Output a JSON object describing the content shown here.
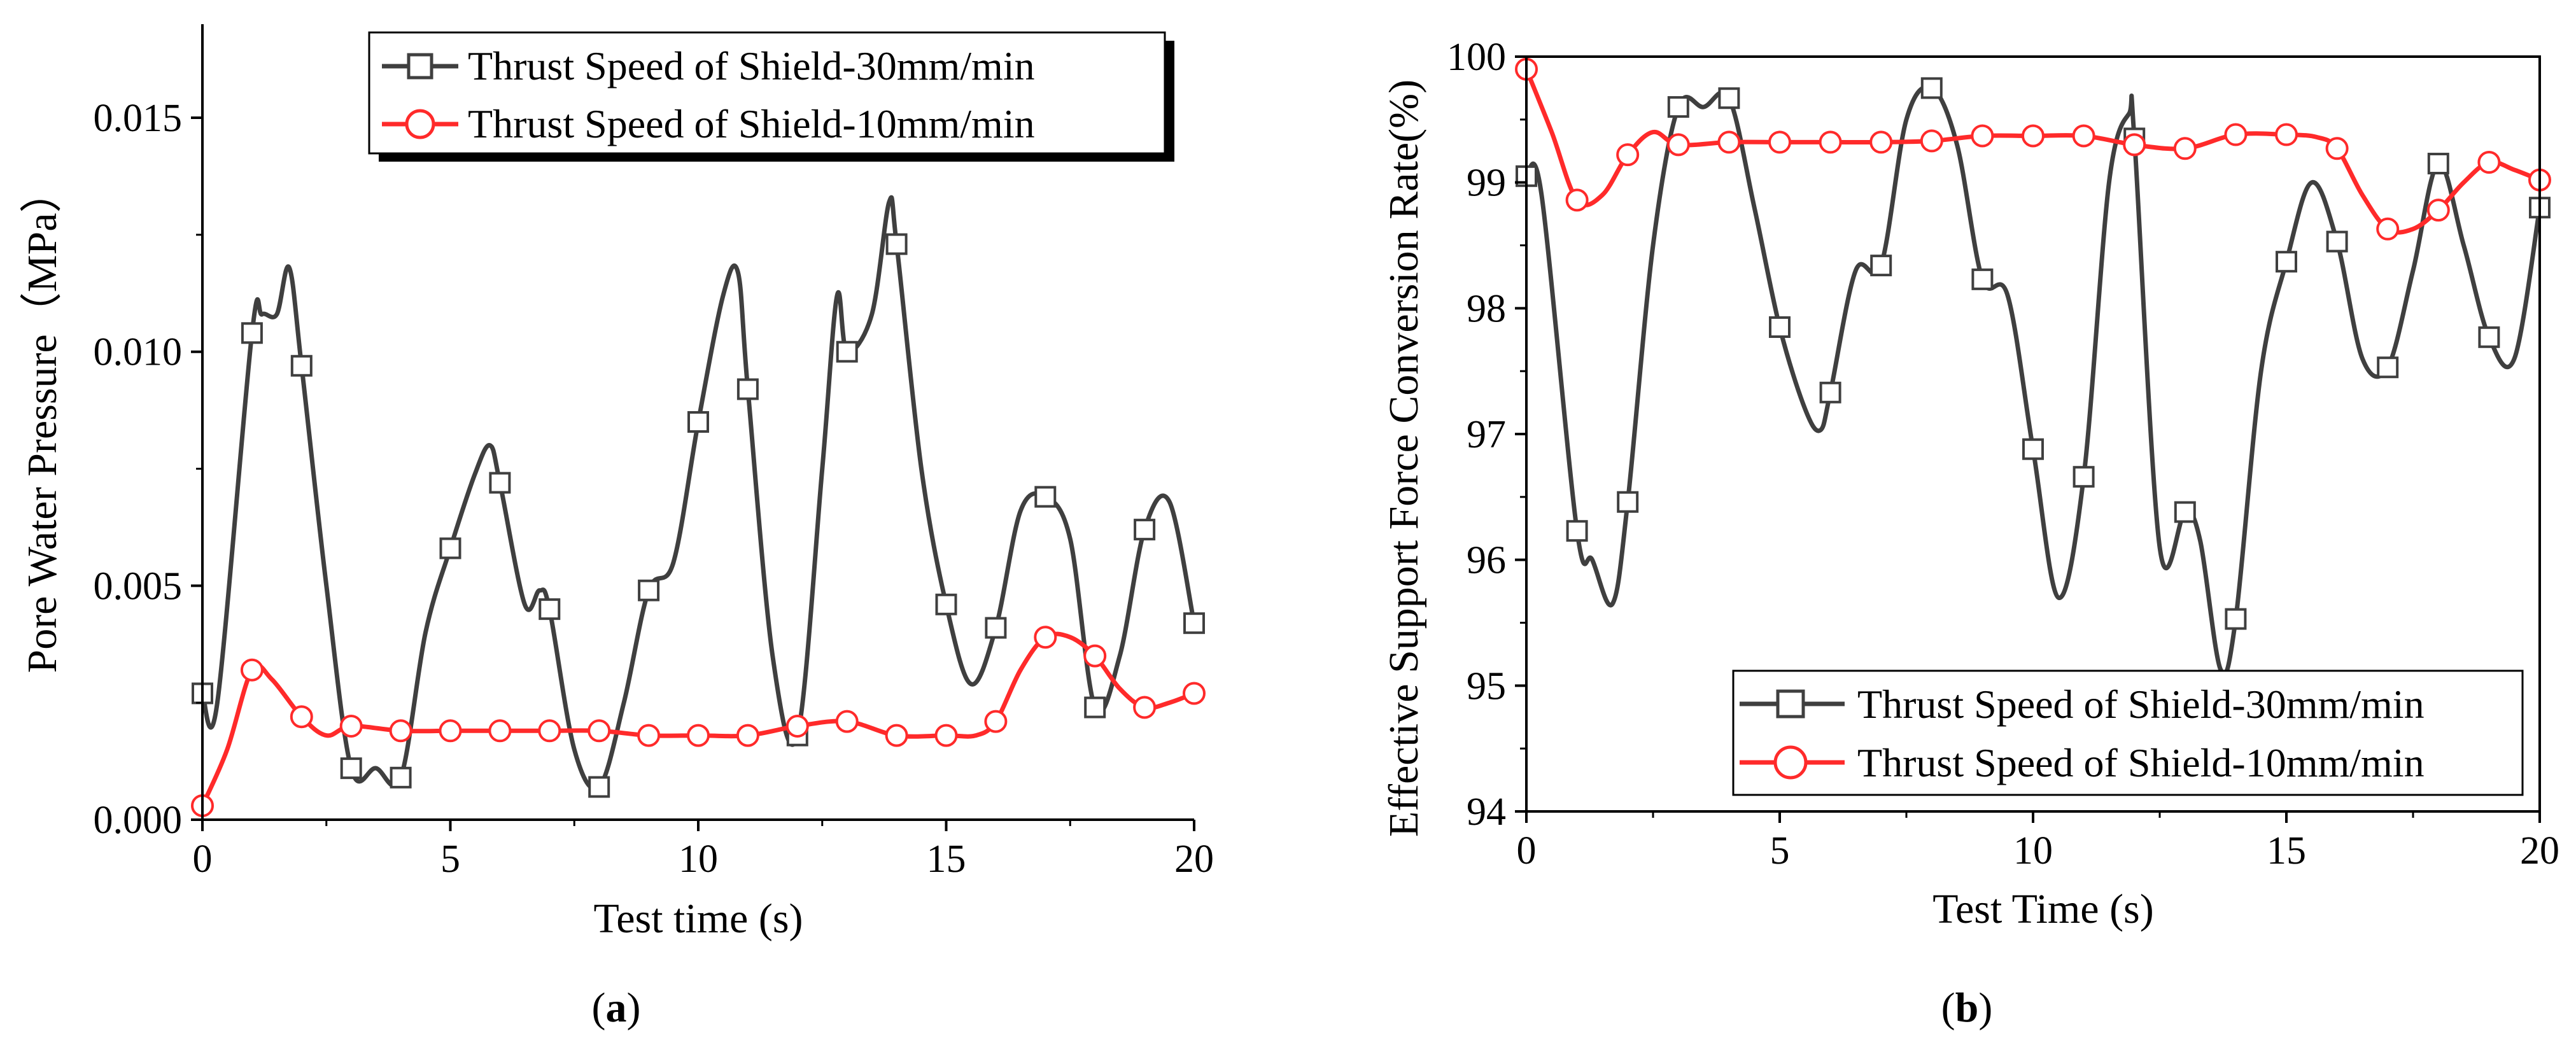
{
  "figure": {
    "colors": {
      "series_30": "#3f3f3f",
      "series_10": "#ff2a2a",
      "axis": "#000000",
      "background": "#ffffff"
    },
    "markers": {
      "series_30": "open-square",
      "series_10": "open-circle"
    }
  },
  "chart_data": [
    {
      "id": "a",
      "type": "line",
      "panel_label": {
        "open": "(",
        "letter": "a",
        "close": ")"
      },
      "title": "",
      "xlabel": "Test time (s)",
      "ylabel": "Pore Water Pressure（MPa）",
      "xlim": [
        0,
        20
      ],
      "ylim": [
        0,
        0.017
      ],
      "xticks": [
        0,
        5,
        10,
        15,
        20
      ],
      "xtick_labels": [
        "0",
        "5",
        "10",
        "15",
        "20"
      ],
      "yticks": [
        0,
        0.005,
        0.01,
        0.015
      ],
      "ytick_labels": [
        "0.000",
        "0.005",
        "0.010",
        "0.015"
      ],
      "legend_position": "top-right",
      "series": [
        {
          "name": "Thrust Speed of Shield-30mm/min",
          "color": "#3f3f3f",
          "marker": "square",
          "x": [
            0,
            0.3,
            1,
            1.2,
            1.5,
            1.75,
            2,
            2.5,
            3,
            3.5,
            4,
            4.5,
            5,
            5.5,
            5.8,
            6,
            6.5,
            6.8,
            7,
            7.5,
            8,
            8.5,
            9,
            9.5,
            10,
            10.5,
            10.8,
            11,
            11.5,
            12,
            12.5,
            12.8,
            13,
            13.5,
            13.85,
            14,
            14.5,
            15,
            15.5,
            16,
            16.5,
            17,
            17.5,
            18,
            18.5,
            19,
            19.5,
            20
          ],
          "y": [
            0.0027,
            0.0025,
            0.0104,
            0.0108,
            0.0108,
            0.0118,
            0.0097,
            0.005,
            0.0011,
            0.0011,
            0.0009,
            0.004,
            0.0058,
            0.0074,
            0.008,
            0.0072,
            0.0046,
            0.0049,
            0.0045,
            0.0015,
            0.0007,
            0.0025,
            0.0049,
            0.0055,
            0.0085,
            0.0112,
            0.0117,
            0.0092,
            0.0035,
            0.0018,
            0.0075,
            0.0112,
            0.01,
            0.0108,
            0.0132,
            0.0123,
            0.0075,
            0.0046,
            0.0029,
            0.0041,
            0.0066,
            0.0069,
            0.006,
            0.0024,
            0.0035,
            0.0062,
            0.0068,
            0.0042
          ],
          "marker_x": [
            0,
            1,
            2,
            3,
            4,
            5,
            6,
            7,
            8,
            9,
            10,
            11,
            12,
            13,
            14,
            15,
            16,
            17,
            18,
            19,
            20
          ],
          "marker_y": [
            0.0027,
            0.0104,
            0.0097,
            0.0011,
            0.0009,
            0.0058,
            0.0072,
            0.0045,
            0.0007,
            0.0049,
            0.0085,
            0.0092,
            0.0018,
            0.01,
            0.0123,
            0.0046,
            0.0041,
            0.0069,
            0.0024,
            0.0062,
            0.0042
          ]
        },
        {
          "name": "Thrust Speed of Shield-10mm/min",
          "color": "#ff2a2a",
          "marker": "circle",
          "x": [
            0,
            0.5,
            1,
            1.4,
            2,
            2.5,
            3,
            4,
            5,
            6,
            7,
            8,
            9,
            10,
            11,
            12,
            13,
            14,
            15,
            15.6,
            16,
            16.5,
            17,
            17.5,
            18,
            18.5,
            19,
            19.5,
            20
          ],
          "y": [
            0.0003,
            0.0015,
            0.0032,
            0.003,
            0.0022,
            0.0018,
            0.002,
            0.0019,
            0.0019,
            0.0019,
            0.0019,
            0.0019,
            0.0018,
            0.0018,
            0.0018,
            0.002,
            0.0021,
            0.0018,
            0.0018,
            0.0018,
            0.0021,
            0.0032,
            0.0039,
            0.0039,
            0.0035,
            0.0028,
            0.0024,
            0.0025,
            0.0027
          ],
          "marker_x": [
            0,
            1,
            2,
            3,
            4,
            5,
            6,
            7,
            8,
            9,
            10,
            11,
            12,
            13,
            14,
            15,
            16,
            17,
            18,
            19,
            20
          ],
          "marker_y": [
            0.0003,
            0.0032,
            0.0022,
            0.002,
            0.0019,
            0.0019,
            0.0019,
            0.0019,
            0.0019,
            0.0018,
            0.0018,
            0.0018,
            0.002,
            0.0021,
            0.0018,
            0.0018,
            0.0021,
            0.0039,
            0.0035,
            0.0024,
            0.0027
          ]
        }
      ]
    },
    {
      "id": "b",
      "type": "line",
      "panel_label": {
        "open": "(",
        "letter": "b",
        "close": ")"
      },
      "title": "",
      "xlabel": "Test Time (s)",
      "ylabel": "Effective Support Force Conversion Rate(%)",
      "xlim": [
        0,
        20
      ],
      "ylim": [
        94,
        100
      ],
      "xticks": [
        0,
        5,
        10,
        15,
        20
      ],
      "xtick_labels": [
        "0",
        "5",
        "10",
        "15",
        "20"
      ],
      "yticks": [
        94,
        95,
        96,
        97,
        98,
        99,
        100
      ],
      "ytick_labels": [
        "94",
        "95",
        "96",
        "97",
        "98",
        "99",
        "100"
      ],
      "legend_position": "bottom-right",
      "series": [
        {
          "name": "Thrust Speed of Shield-30mm/min",
          "color": "#3f3f3f",
          "marker": "square",
          "x": [
            0,
            0.3,
            1,
            1.3,
            1.7,
            2,
            2.5,
            3,
            3.5,
            4,
            4.5,
            5,
            5.5,
            5.8,
            6,
            6.5,
            7,
            7.5,
            8,
            8.5,
            9,
            9.5,
            10,
            10.5,
            11,
            11.5,
            11.9,
            12,
            12.5,
            13,
            13.3,
            13.7,
            14,
            14.5,
            15,
            15.5,
            16,
            16.5,
            17,
            17.5,
            18,
            18.5,
            19,
            19.5,
            20
          ],
          "y": [
            99.05,
            98.9,
            96.23,
            96,
            95.65,
            96.46,
            98.5,
            99.6,
            99.6,
            99.67,
            98.8,
            97.85,
            97.2,
            97.03,
            97.33,
            98.3,
            98.34,
            99.5,
            99.75,
            99.3,
            98.23,
            98.1,
            96.88,
            95.7,
            96.66,
            99,
            99.55,
            99.35,
            96.1,
            96.38,
            96.15,
            95.13,
            95.53,
            97.5,
            98.37,
            99,
            98.53,
            97.6,
            97.53,
            98.3,
            99.15,
            98.5,
            97.77,
            97.6,
            98.8
          ],
          "marker_x": [
            0,
            1,
            2,
            3,
            4,
            5,
            6,
            7,
            8,
            9,
            10,
            11,
            12,
            13,
            14,
            15,
            16,
            17,
            18,
            19,
            20
          ],
          "marker_y": [
            99.05,
            96.23,
            96.46,
            99.6,
            99.67,
            97.85,
            97.33,
            98.34,
            99.75,
            98.23,
            96.88,
            96.66,
            99.35,
            96.38,
            95.53,
            98.37,
            98.53,
            97.53,
            99.15,
            97.77,
            98.8
          ]
        },
        {
          "name": "Thrust Speed of Shield-10mm/min",
          "color": "#ff2a2a",
          "marker": "circle",
          "x": [
            0,
            0.5,
            1,
            1.5,
            2,
            2.5,
            3,
            4,
            5,
            6,
            7,
            8,
            9,
            10,
            11,
            12,
            13,
            14,
            15,
            15.6,
            16,
            16.5,
            17,
            17.5,
            18,
            18.5,
            19,
            19.5,
            20
          ],
          "y": [
            99.9,
            99.4,
            98.86,
            98.9,
            99.22,
            99.4,
            99.3,
            99.32,
            99.32,
            99.32,
            99.32,
            99.33,
            99.37,
            99.37,
            99.37,
            99.3,
            99.27,
            99.38,
            99.38,
            99.36,
            99.27,
            98.9,
            98.63,
            98.63,
            98.78,
            99,
            99.16,
            99.1,
            99.02
          ],
          "marker_x": [
            0,
            1,
            2,
            3,
            4,
            5,
            6,
            7,
            8,
            9,
            10,
            11,
            12,
            13,
            14,
            15,
            16,
            17,
            18,
            19,
            20
          ],
          "marker_y": [
            99.9,
            98.86,
            99.22,
            99.3,
            99.32,
            99.32,
            99.32,
            99.32,
            99.33,
            99.37,
            99.37,
            99.37,
            99.3,
            99.27,
            99.38,
            99.38,
            99.27,
            98.63,
            98.78,
            99.16,
            99.02
          ]
        }
      ]
    }
  ]
}
